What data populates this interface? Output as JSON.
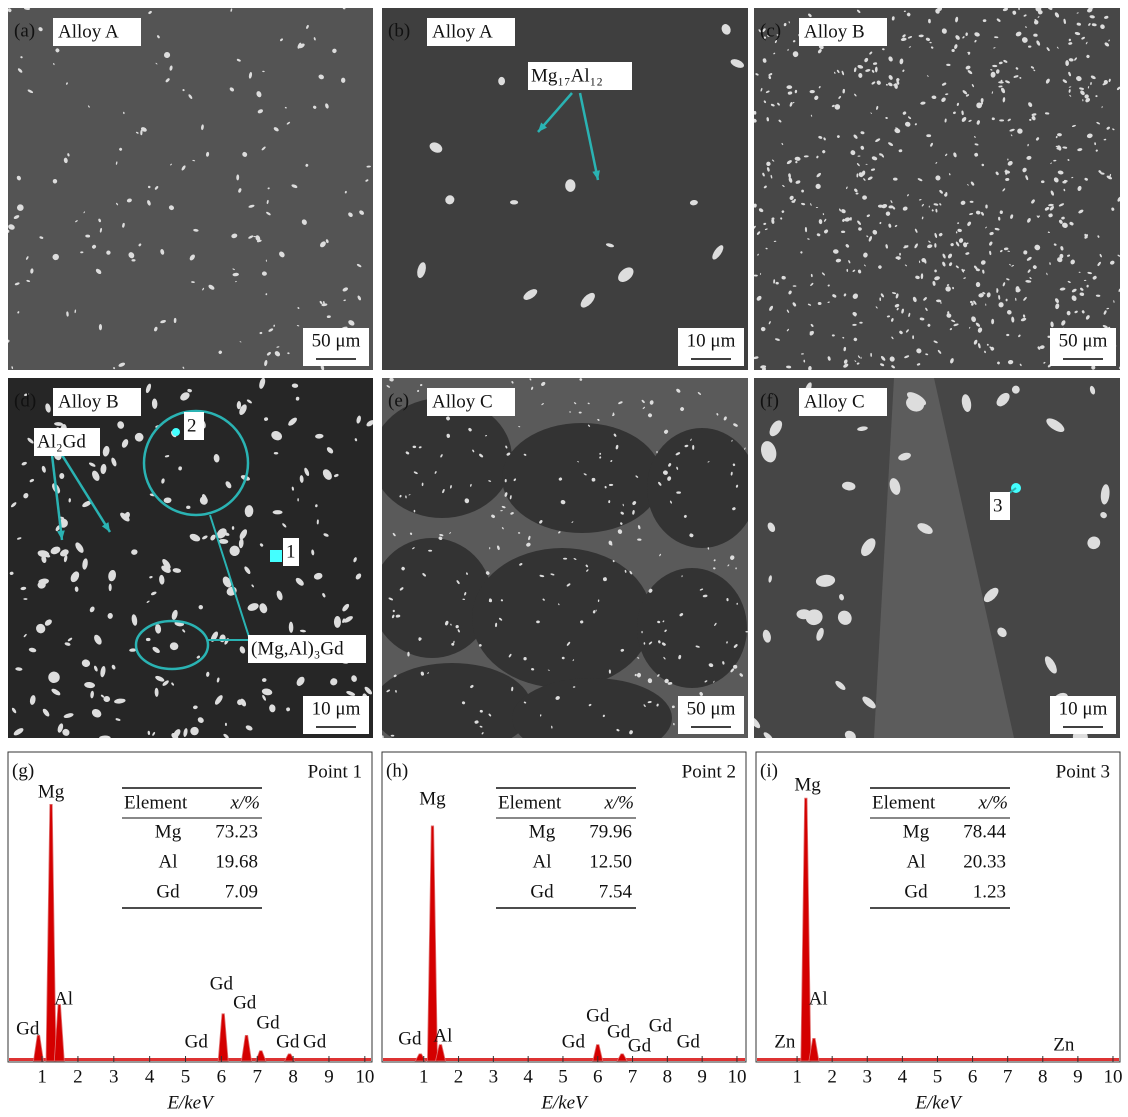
{
  "micrographs": [
    {
      "panel": "(a)",
      "alloy": "Alloy A",
      "scale_bar": "50 μm",
      "annotations": []
    },
    {
      "panel": "(b)",
      "alloy": "Alloy A",
      "scale_bar": "10 μm",
      "annotations": [
        "Mg₁₇Al₁₂"
      ]
    },
    {
      "panel": "(c)",
      "alloy": "Alloy B",
      "scale_bar": "50 μm",
      "annotations": []
    },
    {
      "panel": "(d)",
      "alloy": "Alloy B",
      "scale_bar": "10 μm",
      "annotations": [
        "Al₂Gd",
        "2",
        "1",
        "(Mg,Al)₃Gd"
      ]
    },
    {
      "panel": "(e)",
      "alloy": "Alloy C",
      "scale_bar": "50 μm",
      "annotations": []
    },
    {
      "panel": "(f)",
      "alloy": "Alloy C",
      "scale_bar": "10 μm",
      "annotations": [
        "3"
      ]
    }
  ],
  "chart_data": [
    {
      "type": "spectrum",
      "panel": "(g)",
      "title": "Point 1",
      "x_label": "E/keV",
      "color": "#d40000",
      "xlim": [
        0.05,
        10.2
      ],
      "ylim": [
        0,
        100
      ],
      "xticks": [
        1,
        2,
        3,
        4,
        5,
        6,
        7,
        8,
        9,
        10
      ],
      "x": [
        0.9,
        1.25,
        1.48,
        6.05,
        6.7,
        7.1,
        7.9
      ],
      "values": [
        8,
        83,
        18,
        15,
        8,
        3,
        2
      ],
      "peak_labels": [
        {
          "text": "Gd",
          "x": 0.6
        },
        {
          "text": "Mg",
          "x": 1.25
        },
        {
          "text": "Al",
          "x": 1.6
        },
        {
          "text": "Gd",
          "x": 5.3
        },
        {
          "text": "Gd",
          "x": 6.0
        },
        {
          "text": "Gd",
          "x": 6.65
        },
        {
          "text": "Gd",
          "x": 7.3
        },
        {
          "text": "Gd",
          "x": 7.85
        },
        {
          "text": "Gd",
          "x": 8.6
        }
      ],
      "table": {
        "header": [
          "Element",
          "x/%"
        ],
        "rows": [
          [
            "Mg",
            "73.23"
          ],
          [
            "Al",
            "19.68"
          ],
          [
            "Gd",
            "7.09"
          ]
        ]
      }
    },
    {
      "type": "spectrum",
      "panel": "(h)",
      "title": "Point 2",
      "x_label": "E/keV",
      "color": "#d40000",
      "xlim": [
        -0.2,
        10.26
      ],
      "ylim": [
        0,
        100
      ],
      "xticks": [
        1,
        2,
        3,
        4,
        5,
        6,
        7,
        8,
        9,
        10
      ],
      "x": [
        0.9,
        1.25,
        1.48,
        6.0,
        6.7
      ],
      "values": [
        2,
        76,
        5,
        5,
        2
      ],
      "peak_labels": [
        {
          "text": "Gd",
          "x": 0.6
        },
        {
          "text": "Mg",
          "x": 1.25
        },
        {
          "text": "Al",
          "x": 1.55
        },
        {
          "text": "Gd",
          "x": 5.3
        },
        {
          "text": "Gd",
          "x": 6.0
        },
        {
          "text": "Gd",
          "x": 6.6
        },
        {
          "text": "Gd",
          "x": 7.2
        },
        {
          "text": "Gd",
          "x": 7.8
        },
        {
          "text": "Gd",
          "x": 8.6
        }
      ],
      "table": {
        "header": [
          "Element",
          "x/%"
        ],
        "rows": [
          [
            "Mg",
            "79.96"
          ],
          [
            "Al",
            "12.50"
          ],
          [
            "Gd",
            "7.54"
          ]
        ]
      }
    },
    {
      "type": "spectrum",
      "panel": "(i)",
      "title": "Point 3",
      "x_label": "E/keV",
      "color": "#d40000",
      "xlim": [
        -0.17,
        10.2
      ],
      "ylim": [
        0,
        100
      ],
      "xticks": [
        1,
        2,
        3,
        4,
        5,
        6,
        7,
        8,
        9,
        10
      ],
      "x": [
        1.25,
        1.48
      ],
      "values": [
        85,
        7
      ],
      "peak_labels": [
        {
          "text": "Zn",
          "x": 0.65
        },
        {
          "text": "Mg",
          "x": 1.3
        },
        {
          "text": "Al",
          "x": 1.6
        },
        {
          "text": "Zn",
          "x": 8.6
        }
      ],
      "table": {
        "header": [
          "Element",
          "x/%"
        ],
        "rows": [
          [
            "Mg",
            "78.44"
          ],
          [
            "Al",
            "20.33"
          ],
          [
            "Gd",
            "1.23"
          ]
        ]
      }
    }
  ]
}
